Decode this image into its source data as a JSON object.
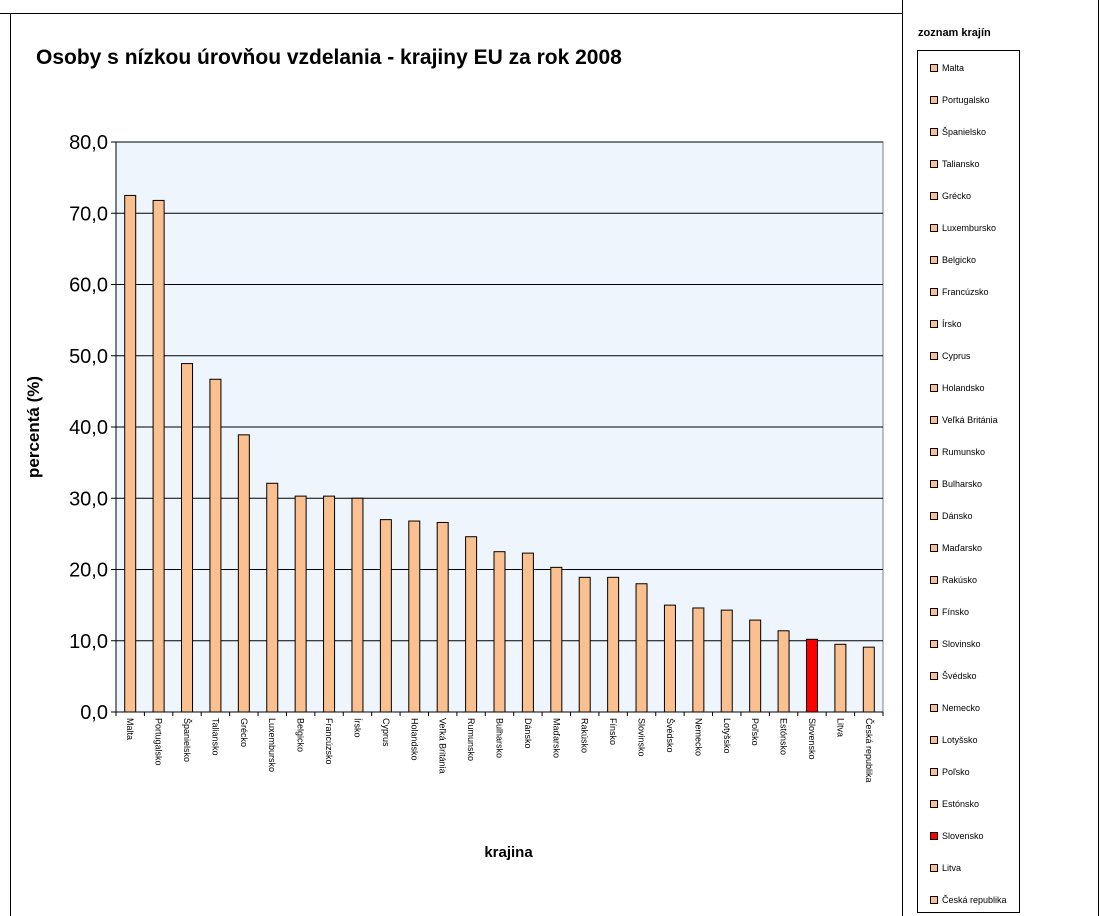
{
  "chart_data": {
    "type": "bar",
    "title": "Osoby s nízkou úrovňou vzdelania - krajiny EU za rok 2008",
    "xlabel": "krajina",
    "ylabel": "percentá (%)",
    "ylim": [
      0,
      80
    ],
    "yticks": [
      "0,0",
      "10,0",
      "20,0",
      "30,0",
      "40,0",
      "50,0",
      "60,0",
      "70,0",
      "80,0"
    ],
    "grid": true,
    "legend_title": "zoznam krajín",
    "legend_position": "right",
    "categories": [
      "Malta",
      "Portugalsko",
      "Španielsko",
      "Taliansko",
      "Grécko",
      "Luxembursko",
      "Belgicko",
      "Francúzsko",
      "Írsko",
      "Cyprus",
      "Holandsko",
      "Veľká Británia",
      "Rumunsko",
      "Bulharsko",
      "Dánsko",
      "Maďarsko",
      "Rakúsko",
      "Fínsko",
      "Slovinsko",
      "Švédsko",
      "Nemecko",
      "Lotyšsko",
      "Poľsko",
      "Estónsko",
      "Slovensko",
      "Litva",
      "Česká republika"
    ],
    "values": [
      72.5,
      71.8,
      48.9,
      46.7,
      38.9,
      32.1,
      30.3,
      30.3,
      30.0,
      27.0,
      26.8,
      26.6,
      24.6,
      22.5,
      22.3,
      20.3,
      18.9,
      18.9,
      18.0,
      15.0,
      14.6,
      14.3,
      12.9,
      11.4,
      10.2,
      9.5,
      9.1
    ],
    "colors": {
      "bar": "#FAC090",
      "highlight": "#FF0000",
      "highlight_category": "Slovensko",
      "plot_background": "#EEF5FD",
      "gridline": "#000000"
    }
  }
}
